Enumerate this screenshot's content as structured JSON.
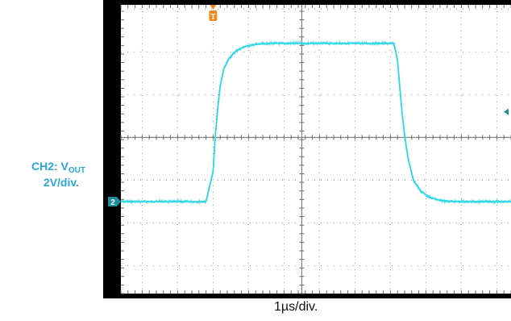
{
  "channel_label": {
    "prefix": "CH2: V",
    "subscript": "OUT",
    "scale": "2V/div."
  },
  "timebase_label": "1µs/div.",
  "markers": {
    "trigger_glyph": "T",
    "channel_glyph": "2"
  },
  "colors": {
    "trace": "#2ed7e6",
    "trigger": "#f08a1e",
    "channel_marker": "#1c8f9a",
    "label": "#2aa6d6",
    "frame": "#000000",
    "grid": "#8a8a8a"
  },
  "chart_data": {
    "type": "line",
    "x_unit": "µs",
    "y_unit": "V",
    "xlim": [
      -2.6,
      8.4
    ],
    "ylim": [
      -5.3,
      8.2
    ],
    "x_div": 1,
    "y_div": 2,
    "grid": true,
    "trigger_time": 0,
    "series": [
      {
        "x": [
          -2.6,
          -0.2,
          0.0,
          0.05,
          0.12,
          0.2,
          0.3,
          0.45,
          0.65,
          0.9,
          1.2,
          1.6,
          2.2,
          3.0,
          3.8,
          4.5,
          5.1,
          5.2,
          5.25,
          5.32,
          5.4,
          5.5,
          5.65,
          5.85,
          6.1,
          6.4,
          6.8,
          7.3,
          8.4
        ],
        "y": [
          -1.0,
          -1.0,
          0.4,
          1.8,
          3.2,
          4.4,
          5.2,
          5.7,
          6.05,
          6.25,
          6.35,
          6.4,
          6.4,
          6.4,
          6.4,
          6.4,
          6.4,
          5.6,
          4.6,
          3.3,
          2.1,
          1.0,
          0.0,
          -0.5,
          -0.8,
          -0.95,
          -1.0,
          -1.0,
          -1.0
        ]
      }
    ]
  }
}
